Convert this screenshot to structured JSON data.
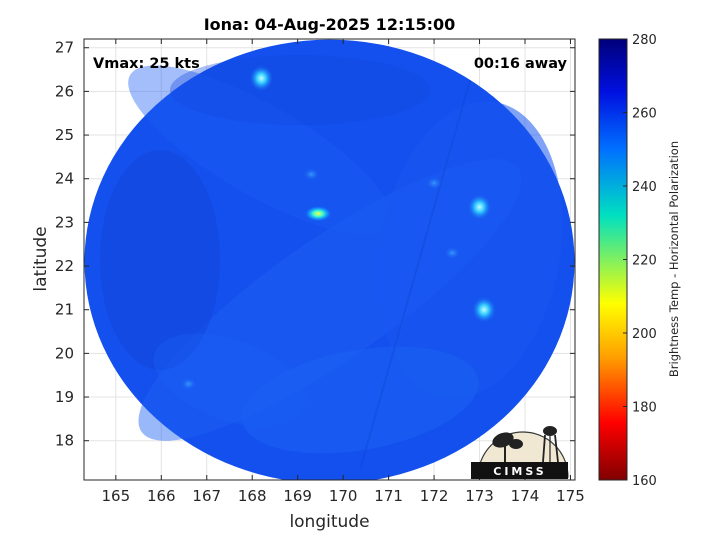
{
  "chart_data": {
    "type": "heatmap",
    "title": "Iona: 04-Aug-2025 12:15:00",
    "xlabel": "longitude",
    "ylabel": "latitude",
    "xlim": [
      164.3,
      175.1
    ],
    "ylim": [
      17.1,
      27.2
    ],
    "xticks": [
      165,
      166,
      167,
      168,
      169,
      170,
      171,
      172,
      173,
      174,
      175
    ],
    "yticks": [
      18,
      19,
      20,
      21,
      22,
      23,
      24,
      25,
      26,
      27
    ],
    "grid": true,
    "colorbar": {
      "label": "Brightness Temp - Horizontal Polarization",
      "range": [
        160,
        280
      ],
      "ticks": [
        160,
        180,
        200,
        220,
        240,
        260,
        280
      ],
      "colors": [
        "#800000",
        "#ff0000",
        "#ffa000",
        "#ffff00",
        "#00e0c0",
        "#0070ff",
        "#0010e0",
        "#00007a"
      ]
    },
    "annotations": {
      "vmax": "Vmax: 25 kts",
      "time_offset": "00:16 away"
    },
    "logo_text": "CIMSS",
    "swath": {
      "center_lon": 169.7,
      "center_lat": 22.1,
      "background_tb": 262,
      "features": [
        {
          "lon": 169.45,
          "lat": 23.2,
          "tb": 215
        },
        {
          "lon": 168.2,
          "lat": 26.3,
          "tb": 240
        },
        {
          "lon": 173.1,
          "lat": 21.0,
          "tb": 242
        },
        {
          "lon": 173.0,
          "lat": 23.35,
          "tb": 245
        },
        {
          "lon": 172.4,
          "lat": 22.3,
          "tb": 250
        },
        {
          "lon": 172.0,
          "lat": 23.9,
          "tb": 252
        },
        {
          "lon": 169.3,
          "lat": 24.1,
          "tb": 253
        },
        {
          "lon": 166.6,
          "lat": 19.3,
          "tb": 250
        }
      ]
    }
  }
}
